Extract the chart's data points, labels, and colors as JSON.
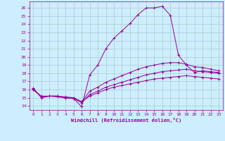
{
  "xlabel": "Windchill (Refroidissement éolien,°C)",
  "bg_color": "#cceeff",
  "grid_color": "#aacccc",
  "line_color": "#990099",
  "marker": "+",
  "xlim": [
    -0.5,
    23.5
  ],
  "ylim": [
    13.5,
    26.8
  ],
  "xticks": [
    0,
    1,
    2,
    3,
    4,
    5,
    6,
    7,
    8,
    9,
    10,
    11,
    12,
    13,
    14,
    15,
    16,
    17,
    18,
    19,
    20,
    21,
    22,
    23
  ],
  "yticks": [
    14,
    15,
    16,
    17,
    18,
    19,
    20,
    21,
    22,
    23,
    24,
    25,
    26
  ],
  "lines": [
    {
      "x": [
        0,
        1,
        2,
        3,
        4,
        5,
        6,
        7,
        8,
        9,
        10,
        11,
        12,
        13,
        14,
        15,
        16,
        17,
        18,
        19,
        20,
        21,
        22,
        23
      ],
      "y": [
        16.2,
        15.0,
        15.2,
        15.2,
        15.0,
        14.9,
        13.9,
        17.8,
        19.0,
        21.0,
        22.3,
        23.2,
        24.1,
        25.2,
        26.0,
        26.0,
        26.2,
        25.1,
        20.2,
        19.0,
        18.1,
        18.3,
        18.2,
        18.1
      ]
    },
    {
      "x": [
        0,
        1,
        2,
        3,
        4,
        5,
        6,
        7,
        8,
        9,
        10,
        11,
        12,
        13,
        14,
        15,
        16,
        17,
        18,
        19,
        20,
        21,
        22,
        23
      ],
      "y": [
        16.1,
        15.1,
        15.2,
        15.2,
        15.1,
        15.0,
        14.5,
        15.8,
        16.3,
        16.9,
        17.3,
        17.7,
        18.1,
        18.5,
        18.8,
        19.0,
        19.2,
        19.3,
        19.3,
        19.1,
        18.8,
        18.7,
        18.5,
        18.3
      ]
    },
    {
      "x": [
        0,
        1,
        2,
        3,
        4,
        5,
        6,
        7,
        8,
        9,
        10,
        11,
        12,
        13,
        14,
        15,
        16,
        17,
        18,
        19,
        20,
        21,
        22,
        23
      ],
      "y": [
        16.0,
        15.1,
        15.2,
        15.1,
        15.0,
        14.9,
        14.4,
        15.4,
        15.8,
        16.3,
        16.6,
        16.9,
        17.2,
        17.5,
        17.8,
        18.0,
        18.2,
        18.3,
        18.4,
        18.5,
        18.3,
        18.2,
        18.1,
        18.0
      ]
    },
    {
      "x": [
        0,
        1,
        2,
        3,
        4,
        5,
        6,
        7,
        8,
        9,
        10,
        11,
        12,
        13,
        14,
        15,
        16,
        17,
        18,
        19,
        20,
        21,
        22,
        23
      ],
      "y": [
        16.0,
        15.2,
        15.2,
        15.2,
        15.0,
        15.0,
        14.5,
        15.2,
        15.6,
        16.0,
        16.3,
        16.5,
        16.7,
        16.9,
        17.1,
        17.3,
        17.4,
        17.5,
        17.6,
        17.7,
        17.6,
        17.5,
        17.4,
        17.3
      ]
    }
  ]
}
